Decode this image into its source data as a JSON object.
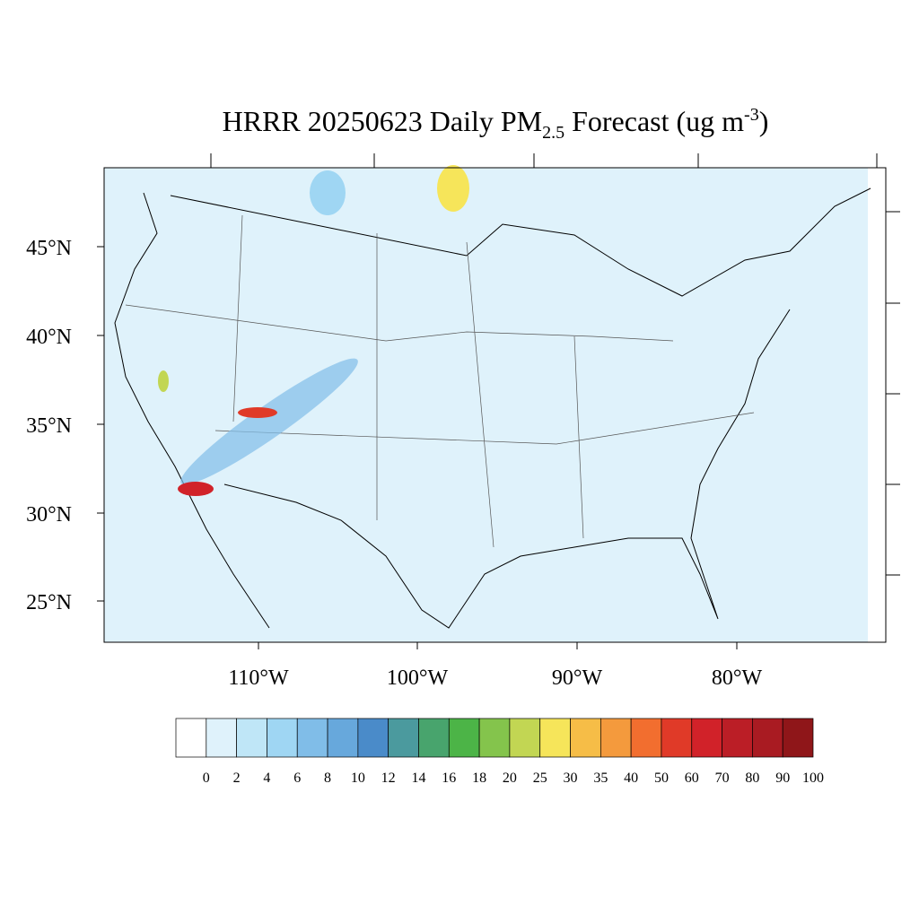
{
  "header": {
    "title_main": "HRRR 20250623 Daily PM",
    "title_sub": "2.5",
    "title_rest": " Forecast (ug m",
    "title_sup": "-3",
    "title_end": ")"
  },
  "map": {
    "lat_labels": [
      "45°N",
      "40°N",
      "35°N",
      "30°N",
      "25°N"
    ],
    "lon_labels": [
      "110°W",
      "100°W",
      "90°W",
      "80°W"
    ],
    "background": "#dff2fb"
  },
  "colorbar": {
    "labels": [
      "0",
      "2",
      "4",
      "6",
      "8",
      "10",
      "12",
      "14",
      "16",
      "18",
      "20",
      "25",
      "30",
      "35",
      "40",
      "50",
      "60",
      "70",
      "80",
      "90",
      "100"
    ],
    "colors": [
      "#ffffff",
      "#dff2fb",
      "#bfe6f7",
      "#9fd6f3",
      "#80bde8",
      "#67a8dc",
      "#4a8bc9",
      "#4b9a9e",
      "#48a46d",
      "#4cb447",
      "#84c44c",
      "#c2d653",
      "#f6e55a",
      "#f6bd47",
      "#f49a3d",
      "#f26e2f",
      "#e03a28",
      "#d12229",
      "#bb1e26",
      "#a91b22",
      "#8f1619"
    ]
  }
}
